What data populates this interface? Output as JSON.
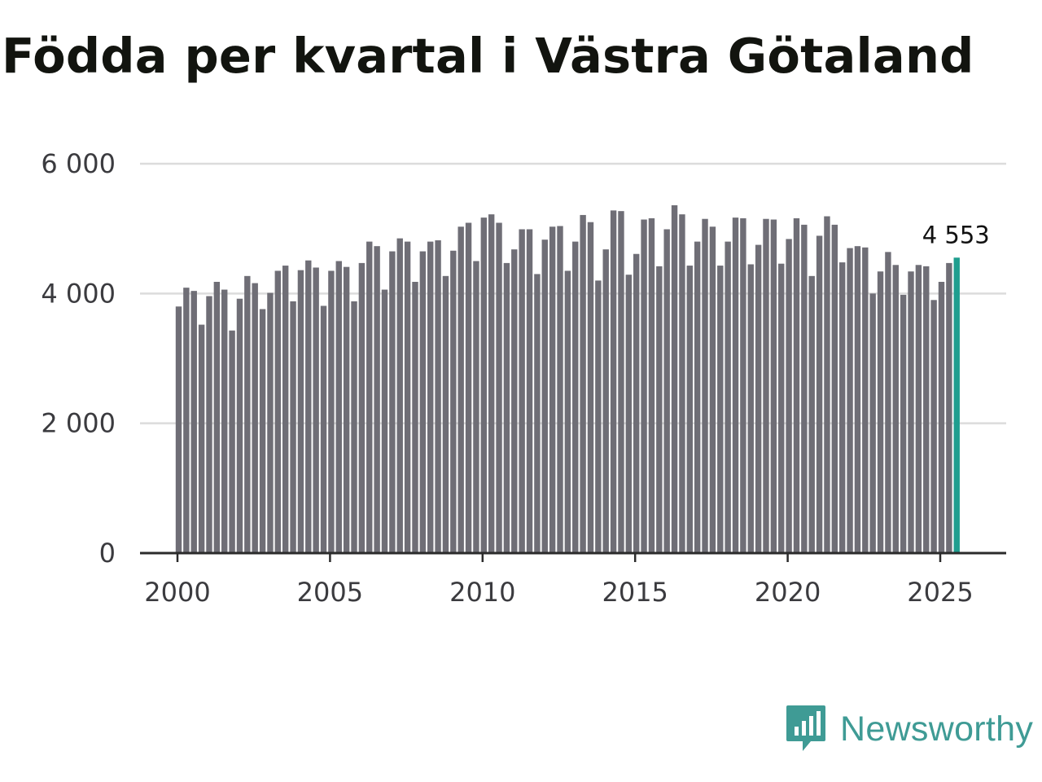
{
  "chart_data": {
    "type": "bar",
    "title": "Födda per kvartal i Västra Götaland",
    "xlabel": "",
    "ylabel": "",
    "ylim": [
      0,
      6000
    ],
    "yticks": [
      0,
      2000,
      4000,
      6000
    ],
    "ytick_labels": [
      "0",
      "2 000",
      "4 000",
      "6 000"
    ],
    "xticks": [
      2000,
      2005,
      2010,
      2015,
      2020,
      2025
    ],
    "xtick_labels": [
      "2000",
      "2005",
      "2010",
      "2015",
      "2020",
      "2025"
    ],
    "x_start": 2000,
    "periods_per_year": 4,
    "values": [
      3800,
      4090,
      4040,
      3520,
      3960,
      4180,
      4060,
      3430,
      3920,
      4270,
      4160,
      3760,
      4010,
      4350,
      4430,
      3880,
      4360,
      4510,
      4400,
      3810,
      4350,
      4500,
      4410,
      3880,
      4470,
      4800,
      4730,
      4060,
      4650,
      4850,
      4800,
      4180,
      4650,
      4800,
      4820,
      4270,
      4660,
      5030,
      5090,
      4500,
      5170,
      5220,
      5090,
      4470,
      4680,
      4990,
      4990,
      4300,
      4830,
      5030,
      5040,
      4350,
      4800,
      5210,
      5100,
      4200,
      4680,
      5280,
      5270,
      4290,
      4610,
      5140,
      5160,
      4420,
      4990,
      5360,
      5220,
      4430,
      4800,
      5150,
      5030,
      4430,
      4800,
      5170,
      5160,
      4450,
      4750,
      5150,
      5140,
      4460,
      4840,
      5160,
      5060,
      4270,
      4890,
      5190,
      5060,
      4480,
      4700,
      4730,
      4710,
      4000,
      4340,
      4640,
      4440,
      3980,
      4340,
      4440,
      4420,
      3900,
      4180,
      4470,
      4553
    ],
    "highlight_index": 102,
    "highlight_label": "4 553",
    "bar_color": "#6f6e76",
    "highlight_color": "#1f9e8f",
    "grid_color": "#dcdcdc",
    "axis_color": "#2b2b2b"
  },
  "branding": {
    "name": "Newsworthy",
    "color": "#3f9b95"
  }
}
